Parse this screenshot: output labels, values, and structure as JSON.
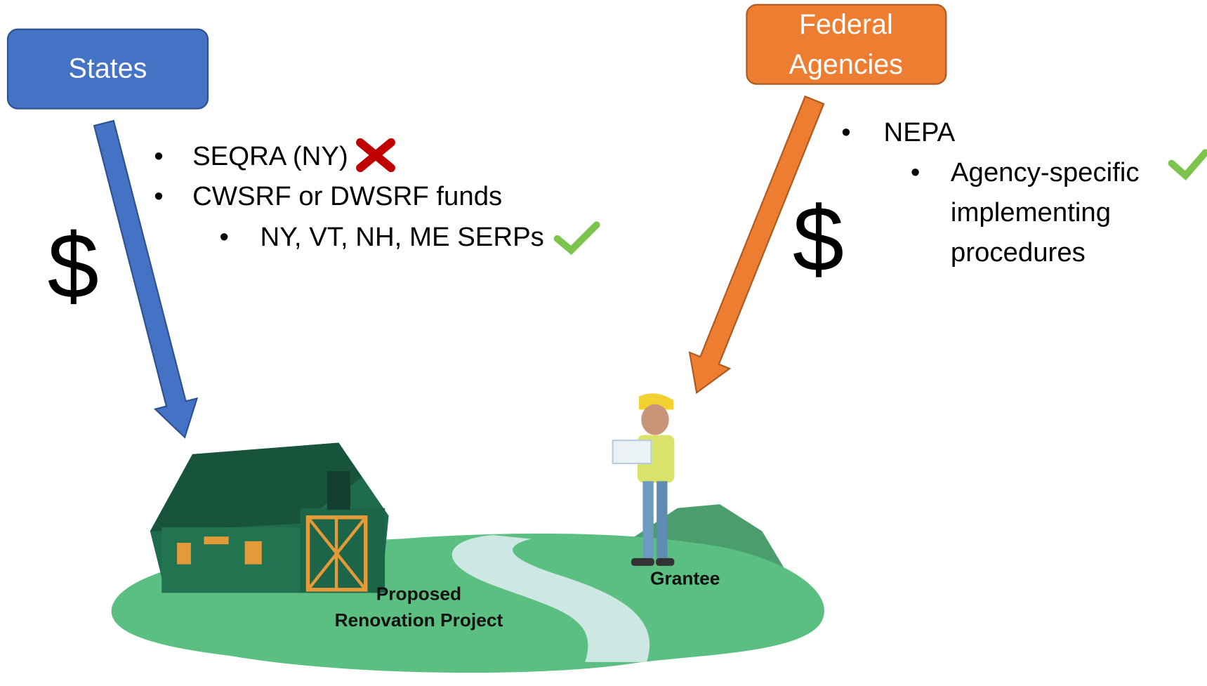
{
  "states": {
    "label": "States",
    "dollar": "$",
    "items": [
      {
        "text": "SEQRA (NY)"
      },
      {
        "text": "CWSRF or DWSRF funds",
        "children": [
          {
            "text": "NY, VT, NH, ME SERPs"
          }
        ]
      }
    ]
  },
  "federal": {
    "label_lines": [
      "Federal",
      "Agencies"
    ],
    "dollar": "$",
    "items": [
      {
        "text": "NEPA",
        "children": [
          {
            "lines": [
              "Agency-specific",
              "implementing",
              "procedures"
            ]
          }
        ]
      }
    ]
  },
  "scene": {
    "project_lines": [
      "Proposed",
      "Renovation Project"
    ],
    "person": "Grantee"
  }
}
